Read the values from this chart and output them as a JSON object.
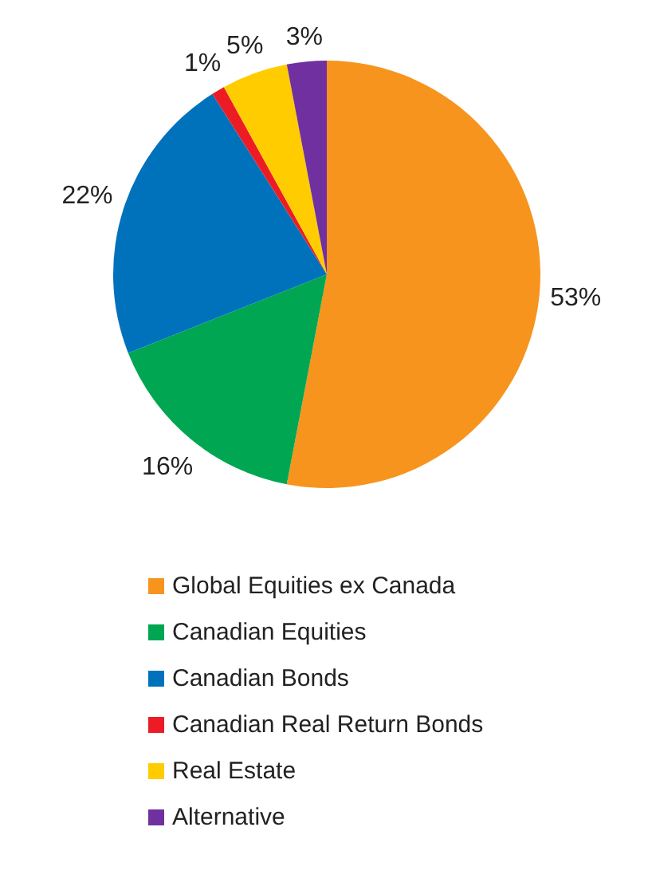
{
  "chart_data": {
    "type": "pie",
    "categories": [
      "Global Equities ex Canada",
      "Canadian Equities",
      "Canadian Bonds",
      "Canadian Real Return Bonds",
      "Real Estate",
      "Alternative"
    ],
    "values": [
      53,
      16,
      22,
      1,
      5,
      3
    ],
    "colors": [
      "#f7941d",
      "#00a651",
      "#0072bc",
      "#ed1c24",
      "#ffcc00",
      "#7030a0"
    ],
    "value_labels": [
      "53%",
      "16%",
      "22%",
      "1%",
      "5%",
      "3%"
    ],
    "legend": "bottom"
  }
}
